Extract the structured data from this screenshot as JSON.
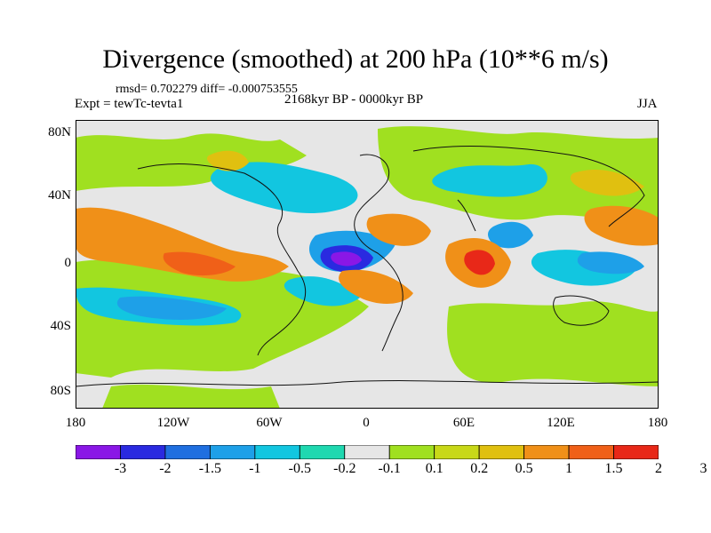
{
  "title": "Divergence (smoothed) at 200 hPa (10**6 m/s)",
  "stats_line": "rmsd= 0.702279 diff= -0.000753555",
  "experiment_label": "Expt = tewTc-tevta1",
  "period_label": "2168kyr BP - 0000kyr BP",
  "season_label": "JJA",
  "lat_labels": [
    "80N",
    "40N",
    "0",
    "40S",
    "80S"
  ],
  "lon_labels": [
    "180",
    "120W",
    "60W",
    "0",
    "60E",
    "120E",
    "180"
  ],
  "colorbar": {
    "labels": [
      "-3",
      "-2",
      "-1.5",
      "-1",
      "-0.5",
      "-0.2",
      "-0.1",
      "0.1",
      "0.2",
      "0.5",
      "1",
      "1.5",
      "2",
      "3"
    ],
    "colors": [
      "#8a17e6",
      "#2a2ae0",
      "#1f6fe0",
      "#1ea0e8",
      "#12c6e0",
      "#1fd8b0",
      "#e6e6e6",
      "#a0e020",
      "#c8d818",
      "#e0c010",
      "#f09018",
      "#f06018",
      "#e82818"
    ]
  },
  "map_colors": {
    "background": "#e6e6e6",
    "coast": "#111111"
  }
}
